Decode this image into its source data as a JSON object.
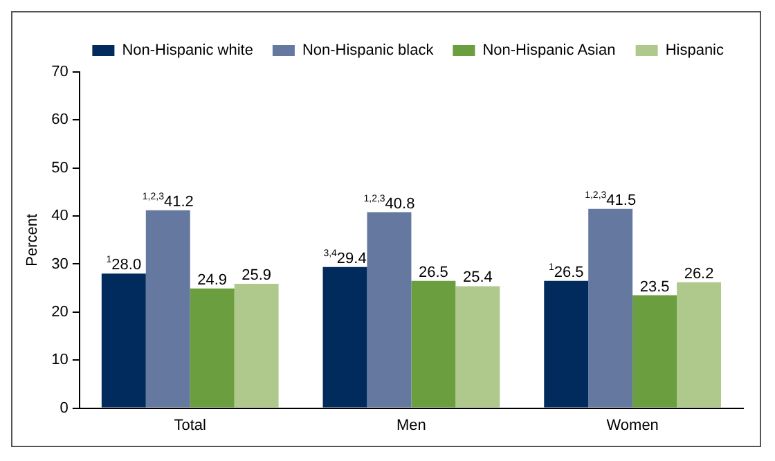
{
  "chart_data": {
    "type": "bar",
    "ylabel": "Percent",
    "categories": [
      "Total",
      "Men",
      "Women"
    ],
    "series": [
      {
        "name": "Non-Hispanic white",
        "color": "#002b5c",
        "values": [
          28.0,
          29.4,
          26.5
        ],
        "value_labels": [
          "$^{1}$28.0",
          "$^{3,4}$29.4",
          "$^{1}$26.5"
        ]
      },
      {
        "name": "Non-Hispanic black",
        "color": "#6578a0",
        "values": [
          41.2,
          40.8,
          41.5
        ],
        "value_labels": [
          "$^{1,2,3}$41.2",
          "$^{1,2,3}$40.8",
          "$^{1,2,3}$41.5"
        ]
      },
      {
        "name": "Non-Hispanic Asian",
        "color": "#6b9e3f",
        "values": [
          24.9,
          26.5,
          23.5
        ],
        "value_labels": [
          "24.9",
          "26.5",
          "23.5"
        ]
      },
      {
        "name": "Hispanic",
        "color": "#afc98c",
        "values": [
          25.9,
          25.4,
          26.2
        ],
        "value_labels": [
          "25.9",
          "25.4",
          "26.2"
        ]
      }
    ],
    "ylim": [
      0,
      70
    ],
    "yticks": [
      0,
      10,
      20,
      30,
      40,
      50,
      60,
      70
    ],
    "grid": false,
    "legend": "top"
  }
}
